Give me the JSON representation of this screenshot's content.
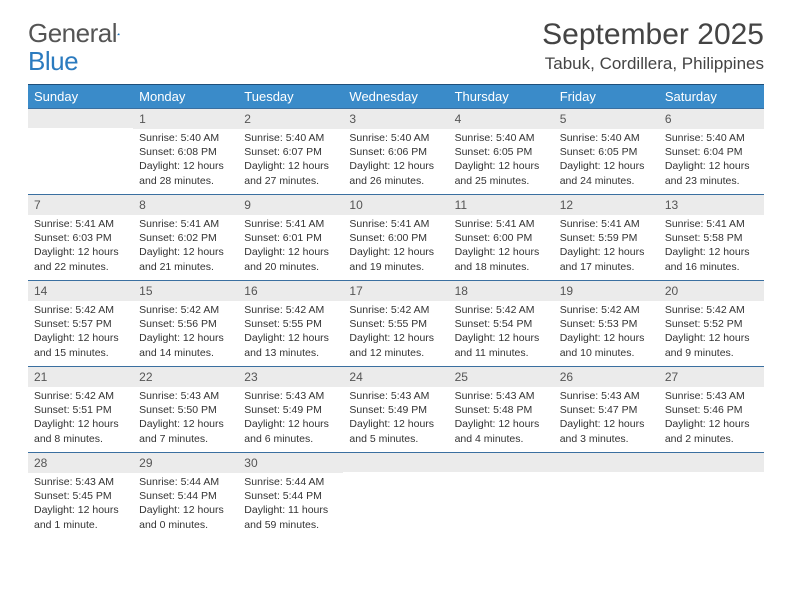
{
  "logo": {
    "general": "General",
    "blue": "Blue"
  },
  "title": "September 2025",
  "location": "Tabuk, Cordillera, Philippines",
  "colors": {
    "header_bg": "#3a8bc9",
    "header_border": "#1f4f7a",
    "row_border": "#3a6fa0",
    "daynum_bg": "#ebebeb",
    "text": "#333333"
  },
  "weekdays": [
    "Sunday",
    "Monday",
    "Tuesday",
    "Wednesday",
    "Thursday",
    "Friday",
    "Saturday"
  ],
  "weeks": [
    [
      null,
      {
        "n": "1",
        "sr": "Sunrise: 5:40 AM",
        "ss": "Sunset: 6:08 PM",
        "dl": "Daylight: 12 hours and 28 minutes."
      },
      {
        "n": "2",
        "sr": "Sunrise: 5:40 AM",
        "ss": "Sunset: 6:07 PM",
        "dl": "Daylight: 12 hours and 27 minutes."
      },
      {
        "n": "3",
        "sr": "Sunrise: 5:40 AM",
        "ss": "Sunset: 6:06 PM",
        "dl": "Daylight: 12 hours and 26 minutes."
      },
      {
        "n": "4",
        "sr": "Sunrise: 5:40 AM",
        "ss": "Sunset: 6:05 PM",
        "dl": "Daylight: 12 hours and 25 minutes."
      },
      {
        "n": "5",
        "sr": "Sunrise: 5:40 AM",
        "ss": "Sunset: 6:05 PM",
        "dl": "Daylight: 12 hours and 24 minutes."
      },
      {
        "n": "6",
        "sr": "Sunrise: 5:40 AM",
        "ss": "Sunset: 6:04 PM",
        "dl": "Daylight: 12 hours and 23 minutes."
      }
    ],
    [
      {
        "n": "7",
        "sr": "Sunrise: 5:41 AM",
        "ss": "Sunset: 6:03 PM",
        "dl": "Daylight: 12 hours and 22 minutes."
      },
      {
        "n": "8",
        "sr": "Sunrise: 5:41 AM",
        "ss": "Sunset: 6:02 PM",
        "dl": "Daylight: 12 hours and 21 minutes."
      },
      {
        "n": "9",
        "sr": "Sunrise: 5:41 AM",
        "ss": "Sunset: 6:01 PM",
        "dl": "Daylight: 12 hours and 20 minutes."
      },
      {
        "n": "10",
        "sr": "Sunrise: 5:41 AM",
        "ss": "Sunset: 6:00 PM",
        "dl": "Daylight: 12 hours and 19 minutes."
      },
      {
        "n": "11",
        "sr": "Sunrise: 5:41 AM",
        "ss": "Sunset: 6:00 PM",
        "dl": "Daylight: 12 hours and 18 minutes."
      },
      {
        "n": "12",
        "sr": "Sunrise: 5:41 AM",
        "ss": "Sunset: 5:59 PM",
        "dl": "Daylight: 12 hours and 17 minutes."
      },
      {
        "n": "13",
        "sr": "Sunrise: 5:41 AM",
        "ss": "Sunset: 5:58 PM",
        "dl": "Daylight: 12 hours and 16 minutes."
      }
    ],
    [
      {
        "n": "14",
        "sr": "Sunrise: 5:42 AM",
        "ss": "Sunset: 5:57 PM",
        "dl": "Daylight: 12 hours and 15 minutes."
      },
      {
        "n": "15",
        "sr": "Sunrise: 5:42 AM",
        "ss": "Sunset: 5:56 PM",
        "dl": "Daylight: 12 hours and 14 minutes."
      },
      {
        "n": "16",
        "sr": "Sunrise: 5:42 AM",
        "ss": "Sunset: 5:55 PM",
        "dl": "Daylight: 12 hours and 13 minutes."
      },
      {
        "n": "17",
        "sr": "Sunrise: 5:42 AM",
        "ss": "Sunset: 5:55 PM",
        "dl": "Daylight: 12 hours and 12 minutes."
      },
      {
        "n": "18",
        "sr": "Sunrise: 5:42 AM",
        "ss": "Sunset: 5:54 PM",
        "dl": "Daylight: 12 hours and 11 minutes."
      },
      {
        "n": "19",
        "sr": "Sunrise: 5:42 AM",
        "ss": "Sunset: 5:53 PM",
        "dl": "Daylight: 12 hours and 10 minutes."
      },
      {
        "n": "20",
        "sr": "Sunrise: 5:42 AM",
        "ss": "Sunset: 5:52 PM",
        "dl": "Daylight: 12 hours and 9 minutes."
      }
    ],
    [
      {
        "n": "21",
        "sr": "Sunrise: 5:42 AM",
        "ss": "Sunset: 5:51 PM",
        "dl": "Daylight: 12 hours and 8 minutes."
      },
      {
        "n": "22",
        "sr": "Sunrise: 5:43 AM",
        "ss": "Sunset: 5:50 PM",
        "dl": "Daylight: 12 hours and 7 minutes."
      },
      {
        "n": "23",
        "sr": "Sunrise: 5:43 AM",
        "ss": "Sunset: 5:49 PM",
        "dl": "Daylight: 12 hours and 6 minutes."
      },
      {
        "n": "24",
        "sr": "Sunrise: 5:43 AM",
        "ss": "Sunset: 5:49 PM",
        "dl": "Daylight: 12 hours and 5 minutes."
      },
      {
        "n": "25",
        "sr": "Sunrise: 5:43 AM",
        "ss": "Sunset: 5:48 PM",
        "dl": "Daylight: 12 hours and 4 minutes."
      },
      {
        "n": "26",
        "sr": "Sunrise: 5:43 AM",
        "ss": "Sunset: 5:47 PM",
        "dl": "Daylight: 12 hours and 3 minutes."
      },
      {
        "n": "27",
        "sr": "Sunrise: 5:43 AM",
        "ss": "Sunset: 5:46 PM",
        "dl": "Daylight: 12 hours and 2 minutes."
      }
    ],
    [
      {
        "n": "28",
        "sr": "Sunrise: 5:43 AM",
        "ss": "Sunset: 5:45 PM",
        "dl": "Daylight: 12 hours and 1 minute."
      },
      {
        "n": "29",
        "sr": "Sunrise: 5:44 AM",
        "ss": "Sunset: 5:44 PM",
        "dl": "Daylight: 12 hours and 0 minutes."
      },
      {
        "n": "30",
        "sr": "Sunrise: 5:44 AM",
        "ss": "Sunset: 5:44 PM",
        "dl": "Daylight: 11 hours and 59 minutes."
      },
      null,
      null,
      null,
      null
    ]
  ]
}
